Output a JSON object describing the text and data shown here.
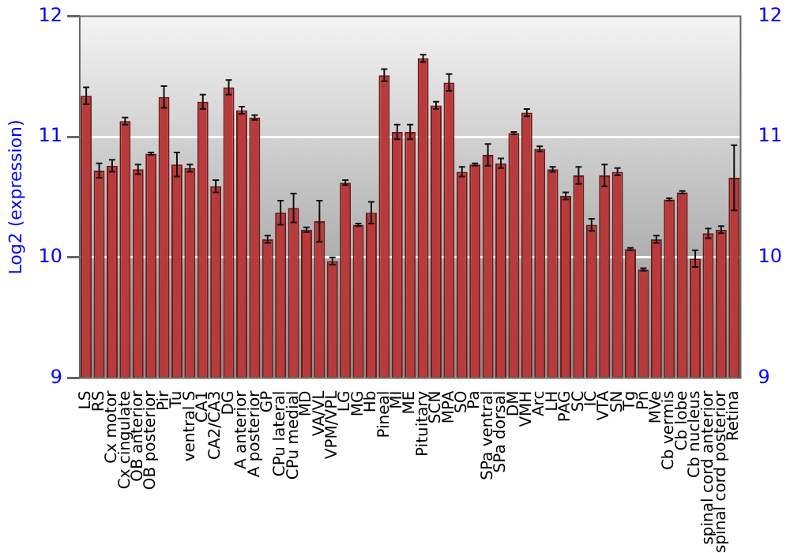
{
  "chart_data": {
    "type": "bar",
    "ylabel": "Log2 (expression)",
    "categories": [
      "LS",
      "RS",
      "Cx motor",
      "Cx cingulate",
      "OB anterior",
      "OB posterior",
      "Pir",
      "Tu",
      "ventral S",
      "CA1",
      "CA2/CA3",
      "DG",
      "A anterior",
      "A posterior",
      "GP",
      "CPu lateral",
      "CPu medial",
      "MD",
      "VA/VL",
      "VPM/VPL",
      "LG",
      "MG",
      "Hb",
      "Pineal",
      "MI",
      "ME",
      "Pituitary",
      "SCN",
      "MPA",
      "SO",
      "Pa",
      "SPa ventral",
      "SPa dorsal",
      "DM",
      "VMH",
      "Arc",
      "LH",
      "PAG",
      "SC",
      "IC",
      "VTA",
      "SN",
      "Tg",
      "Pn",
      "MVe",
      "Cb vermis",
      "Cb lobe",
      "Cb nucleus",
      "spinal cord anterior",
      "spinal cord posterior",
      "Retina"
    ],
    "values": [
      11.34,
      10.72,
      10.76,
      11.13,
      10.73,
      10.86,
      11.33,
      10.77,
      10.74,
      11.29,
      10.59,
      11.41,
      11.22,
      11.16,
      10.15,
      10.37,
      10.41,
      10.23,
      10.3,
      9.97,
      10.62,
      10.27,
      10.37,
      11.51,
      11.04,
      11.04,
      11.65,
      11.26,
      11.45,
      10.71,
      10.77,
      10.85,
      10.78,
      11.03,
      11.2,
      10.9,
      10.73,
      10.51,
      10.68,
      10.27,
      10.68,
      10.71,
      10.07,
      9.9,
      10.15,
      10.48,
      10.54,
      9.99,
      10.2,
      10.23,
      10.66
    ],
    "errors": [
      0.07,
      0.06,
      0.05,
      0.03,
      0.04,
      0.01,
      0.09,
      0.1,
      0.03,
      0.06,
      0.05,
      0.06,
      0.03,
      0.02,
      0.03,
      0.1,
      0.12,
      0.02,
      0.17,
      0.03,
      0.02,
      0.01,
      0.09,
      0.05,
      0.06,
      0.06,
      0.03,
      0.03,
      0.07,
      0.04,
      0.01,
      0.09,
      0.04,
      0.01,
      0.03,
      0.02,
      0.02,
      0.03,
      0.07,
      0.05,
      0.09,
      0.03,
      0.01,
      0.01,
      0.03,
      0.01,
      0.01,
      0.07,
      0.04,
      0.03,
      0.27
    ],
    "color": "#b83a3a",
    "ylim": [
      9,
      12
    ],
    "yticks": [
      9,
      10,
      11,
      12
    ],
    "y2lim": [
      9,
      12
    ],
    "y2ticks": [
      9,
      10,
      11,
      12
    ],
    "grid": "y",
    "legend": false
  }
}
